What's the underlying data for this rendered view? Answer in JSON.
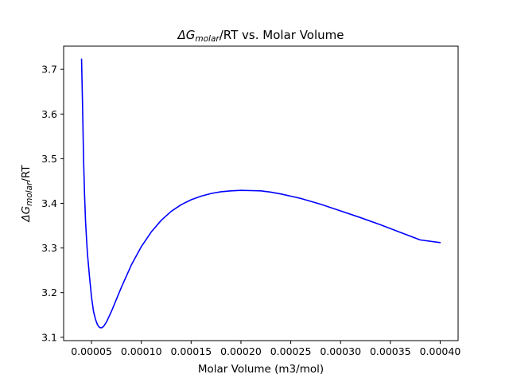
{
  "chart_data": {
    "type": "line",
    "title": {
      "prefix": "ΔG",
      "subscript": "molar",
      "suffix": "/RT vs. Molar Volume"
    },
    "xlabel": "Molar Volume (m3/mol)",
    "ylabel": {
      "prefix": "ΔG",
      "subscript": "molar",
      "suffix": "/RT"
    },
    "xlim": [
      2.2e-05,
      0.000418
    ],
    "ylim": [
      3.0925,
      3.752
    ],
    "xticks": [
      5e-05,
      0.0001,
      0.00015,
      0.0002,
      0.00025,
      0.0003,
      0.00035,
      0.0004
    ],
    "xtick_labels": [
      "0.00005",
      "0.00010",
      "0.00015",
      "0.00020",
      "0.00025",
      "0.00030",
      "0.00035",
      "0.00040"
    ],
    "yticks": [
      3.1,
      3.2,
      3.3,
      3.4,
      3.5,
      3.6,
      3.7
    ],
    "ytick_labels": [
      "3.1",
      "3.2",
      "3.3",
      "3.4",
      "3.5",
      "3.6",
      "3.7"
    ],
    "grid": false,
    "series": [
      {
        "color": "#0000ff",
        "x": [
          4e-05,
          4.1e-05,
          4.2e-05,
          4.3e-05,
          4.4e-05,
          4.5e-05,
          4.6e-05,
          4.8e-05,
          5e-05,
          5.2e-05,
          5.4e-05,
          5.6e-05,
          5.8e-05,
          6e-05,
          6.2e-05,
          6.5e-05,
          7e-05,
          7.5e-05,
          8e-05,
          9e-05,
          0.0001,
          0.00011,
          0.00012,
          0.00013,
          0.00014,
          0.00015,
          0.00016,
          0.00017,
          0.00018,
          0.00019,
          0.0002,
          0.00021,
          0.00022,
          0.00023,
          0.00024,
          0.00025,
          0.00026,
          0.00028,
          0.0003,
          0.00032,
          0.00034,
          0.00036,
          0.00038,
          0.0004
        ],
        "y": [
          3.723,
          3.62,
          3.5,
          3.42,
          3.36,
          3.32,
          3.285,
          3.235,
          3.19,
          3.158,
          3.14,
          3.128,
          3.122,
          3.121,
          3.124,
          3.134,
          3.158,
          3.185,
          3.212,
          3.262,
          3.303,
          3.336,
          3.362,
          3.382,
          3.397,
          3.408,
          3.416,
          3.422,
          3.426,
          3.428,
          3.429,
          3.4285,
          3.428,
          3.425,
          3.421,
          3.416,
          3.411,
          3.398,
          3.383,
          3.368,
          3.352,
          3.335,
          3.318,
          3.312
        ]
      }
    ]
  },
  "colors": {
    "line": "#0000ff",
    "axes": "#000000",
    "background": "#ffffff"
  }
}
